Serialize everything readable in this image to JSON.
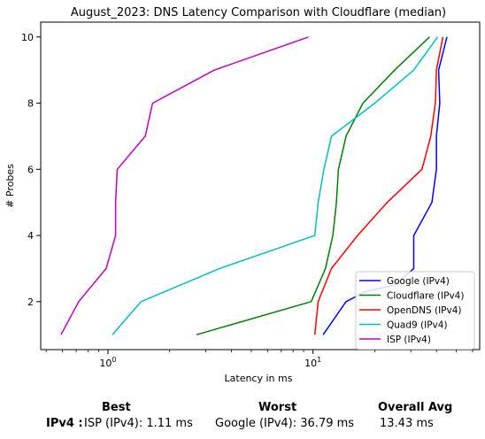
{
  "chart_data": {
    "type": "line",
    "title": "August_2023: DNS Latency Comparison with Cloudflare (median)",
    "xlabel": "Latency in ms",
    "ylabel": "# Probes",
    "xscale": "log",
    "xlim": [
      0.47,
      65
    ],
    "ylim": [
      0.55,
      10.45
    ],
    "xticks": [
      1,
      10,
      100
    ],
    "xtick_labels": [
      "10^0",
      "10^1",
      ""
    ],
    "yticks": [
      2,
      4,
      6,
      8,
      10
    ],
    "grid": false,
    "legend_position": "lower-right",
    "series": [
      {
        "name": "Google (IPv4)",
        "color": "#0000ff",
        "points": [
          [
            11.2,
            1
          ],
          [
            14.5,
            2
          ],
          [
            18,
            2.3
          ],
          [
            25,
            2.5
          ],
          [
            31,
            3
          ],
          [
            31,
            4
          ],
          [
            38,
            5
          ],
          [
            40,
            6
          ],
          [
            40,
            7
          ],
          [
            41.5,
            8
          ],
          [
            41,
            9
          ],
          [
            45,
            10
          ]
        ]
      },
      {
        "name": "Cloudflare (IPv4)",
        "color": "#008000",
        "points": [
          [
            2.7,
            1
          ],
          [
            9.8,
            2
          ],
          [
            11.5,
            3
          ],
          [
            12.5,
            4
          ],
          [
            13,
            5
          ],
          [
            13.3,
            6
          ],
          [
            14.5,
            7
          ],
          [
            17.5,
            8
          ],
          [
            25,
            9
          ],
          [
            37,
            10
          ]
        ]
      },
      {
        "name": "OpenDNS (IPv4)",
        "color": "#ff0000",
        "points": [
          [
            10.2,
            1
          ],
          [
            10.6,
            2
          ],
          [
            12.3,
            3
          ],
          [
            16.5,
            4
          ],
          [
            23,
            5
          ],
          [
            34,
            6
          ],
          [
            37.5,
            7
          ],
          [
            39.5,
            8
          ],
          [
            40,
            9
          ],
          [
            43,
            10
          ]
        ]
      },
      {
        "name": "Quad9 (IPv4)",
        "color": "#00bfbf",
        "points": [
          [
            1.05,
            1
          ],
          [
            1.45,
            2
          ],
          [
            3.5,
            3
          ],
          [
            10.2,
            4
          ],
          [
            10.6,
            5
          ],
          [
            11.3,
            6
          ],
          [
            12.3,
            7
          ],
          [
            20,
            8
          ],
          [
            31,
            9
          ],
          [
            40.5,
            10
          ]
        ]
      },
      {
        "name": "ISP (IPv4)",
        "color": "#bf00bf",
        "points": [
          [
            0.59,
            1
          ],
          [
            0.72,
            2
          ],
          [
            0.98,
            3
          ],
          [
            1.09,
            4
          ],
          [
            1.09,
            5
          ],
          [
            1.11,
            6
          ],
          [
            1.52,
            7
          ],
          [
            1.65,
            8
          ],
          [
            3.3,
            9
          ],
          [
            9.5,
            10
          ]
        ]
      }
    ]
  },
  "summary": {
    "best_header": "Best",
    "worst_header": "Worst",
    "avg_header": "Overall Avg",
    "row_label": "IPv4 :",
    "best_value": "ISP (IPv4): 1.11 ms",
    "worst_value": "Google (IPv4): 36.79 ms",
    "avg_value": "13.43 ms"
  }
}
